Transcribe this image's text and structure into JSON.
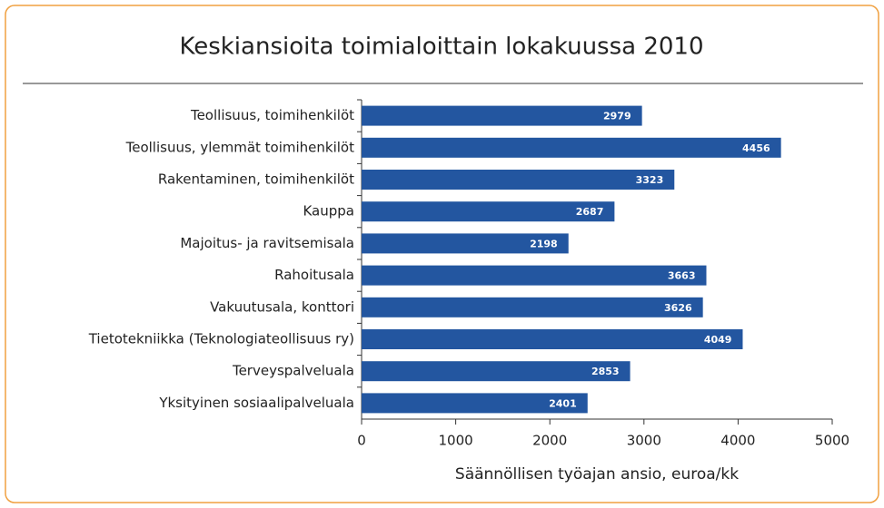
{
  "chart_data": {
    "type": "bar",
    "orientation": "horizontal",
    "title": "Keskiansioita toimialoittain lokakuussa 2010",
    "x_label": "Säännöllisen työajan ansio, euroa/kk",
    "categories": [
      "Teollisuus, toimihenkilöt",
      "Teollisuus, ylemmät toimihenkilöt",
      "Rakentaminen, toimihenkilöt",
      "Kauppa",
      "Majoitus- ja ravitsemisala",
      "Rahoitusala",
      "Vakuutusala, konttori",
      "Tietotekniikka (Teknologiateollisuus ry)",
      "Terveyspalveluala",
      "Yksityinen sosiaalipalveluala"
    ],
    "values": [
      2979,
      4456,
      3323,
      2687,
      2198,
      3663,
      3626,
      4049,
      2853,
      2401
    ],
    "color": "#2356a0",
    "xlim": [
      0,
      5000
    ],
    "xticks": [
      0,
      1000,
      2000,
      3000,
      4000,
      5000
    ]
  }
}
